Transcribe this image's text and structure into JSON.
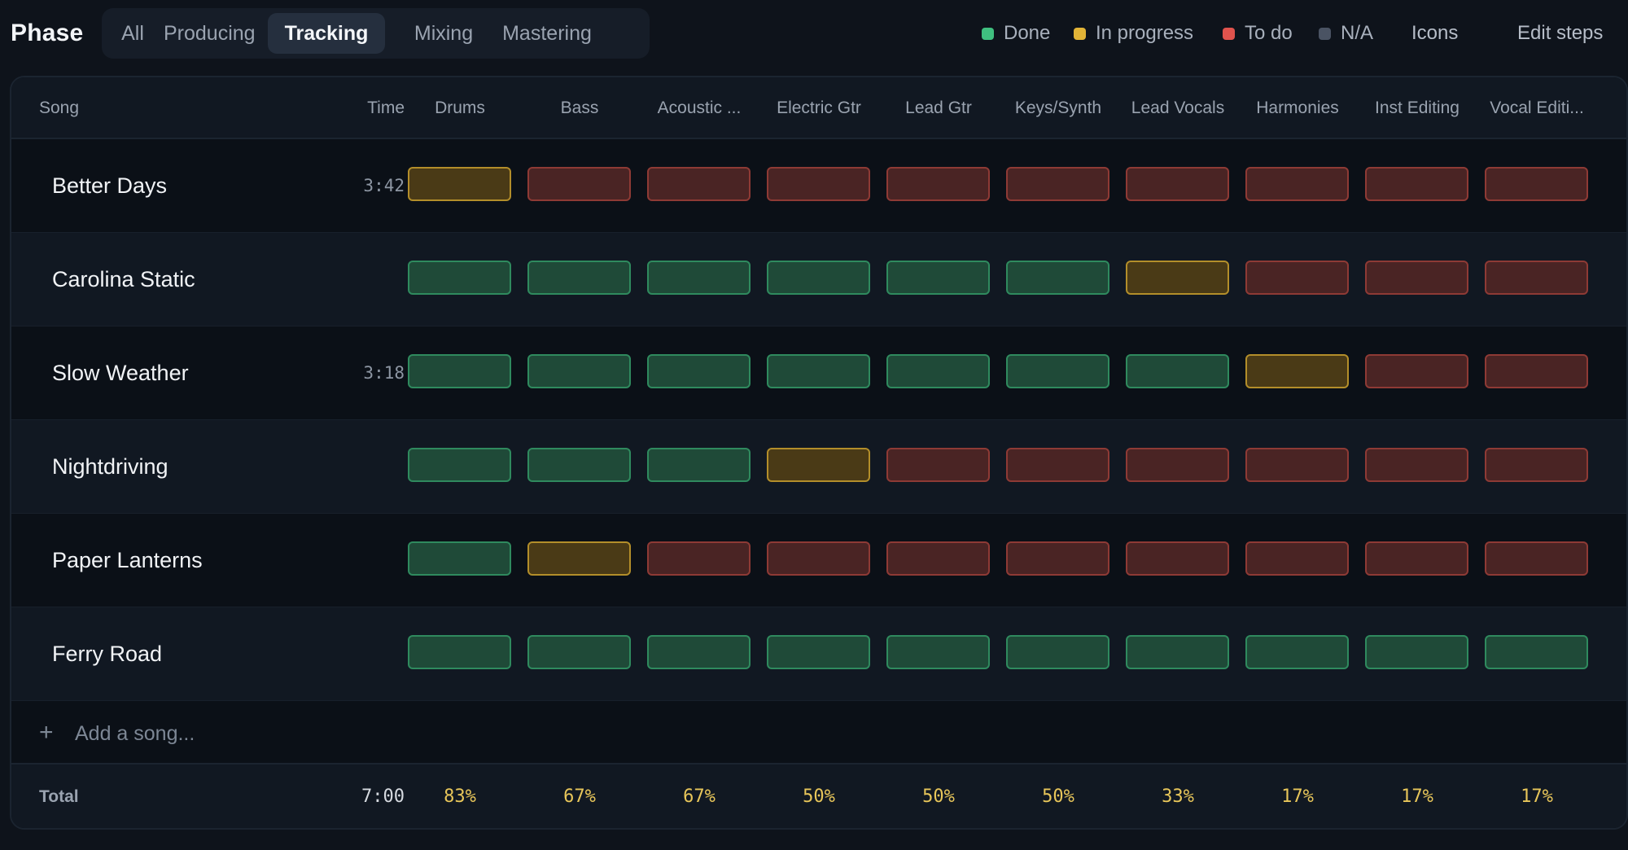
{
  "header": {
    "phase_label": "Phase",
    "tabs": [
      {
        "label": "All",
        "active": false
      },
      {
        "label": "Producing",
        "active": false
      },
      {
        "label": "Tracking",
        "active": true
      },
      {
        "label": "Mixing",
        "active": false
      },
      {
        "label": "Mastering",
        "active": false
      }
    ],
    "legend": [
      {
        "label": "Done",
        "color": "#3fbf7f"
      },
      {
        "label": "In progress",
        "color": "#e2b437"
      },
      {
        "label": "To do",
        "color": "#e0534d"
      },
      {
        "label": "N/A",
        "color": "#4a5363"
      }
    ],
    "icons_label": "Icons",
    "edit_steps_label": "Edit steps"
  },
  "table": {
    "song_header": "Song",
    "time_header": "Time",
    "steps": [
      "Drums",
      "Bass",
      "Acoustic ...",
      "Electric Gtr",
      "Lead Gtr",
      "Keys/Synth",
      "Lead Vocals",
      "Harmonies",
      "Inst Editing",
      "Vocal Editi..."
    ],
    "songs": [
      {
        "name": "Better Days",
        "time": "3:42",
        "status": [
          "progress",
          "todo",
          "todo",
          "todo",
          "todo",
          "todo",
          "todo",
          "todo",
          "todo",
          "todo"
        ]
      },
      {
        "name": "Carolina Static",
        "time": "",
        "status": [
          "done",
          "done",
          "done",
          "done",
          "done",
          "done",
          "progress",
          "todo",
          "todo",
          "todo"
        ]
      },
      {
        "name": "Slow Weather",
        "time": "3:18",
        "status": [
          "done",
          "done",
          "done",
          "done",
          "done",
          "done",
          "done",
          "progress",
          "todo",
          "todo"
        ]
      },
      {
        "name": "Nightdriving",
        "time": "",
        "status": [
          "done",
          "done",
          "done",
          "progress",
          "todo",
          "todo",
          "todo",
          "todo",
          "todo",
          "todo"
        ]
      },
      {
        "name": "Paper Lanterns",
        "time": "",
        "status": [
          "done",
          "progress",
          "todo",
          "todo",
          "todo",
          "todo",
          "todo",
          "todo",
          "todo",
          "todo"
        ]
      },
      {
        "name": "Ferry Road",
        "time": "",
        "status": [
          "done",
          "done",
          "done",
          "done",
          "done",
          "done",
          "done",
          "done",
          "done",
          "done"
        ]
      }
    ],
    "add_plus": "+",
    "add_placeholder": "Add a song...",
    "total_label": "Total",
    "total_time": "7:00",
    "totals": [
      "83%",
      "67%",
      "67%",
      "50%",
      "50%",
      "50%",
      "33%",
      "17%",
      "17%",
      "17%"
    ]
  }
}
